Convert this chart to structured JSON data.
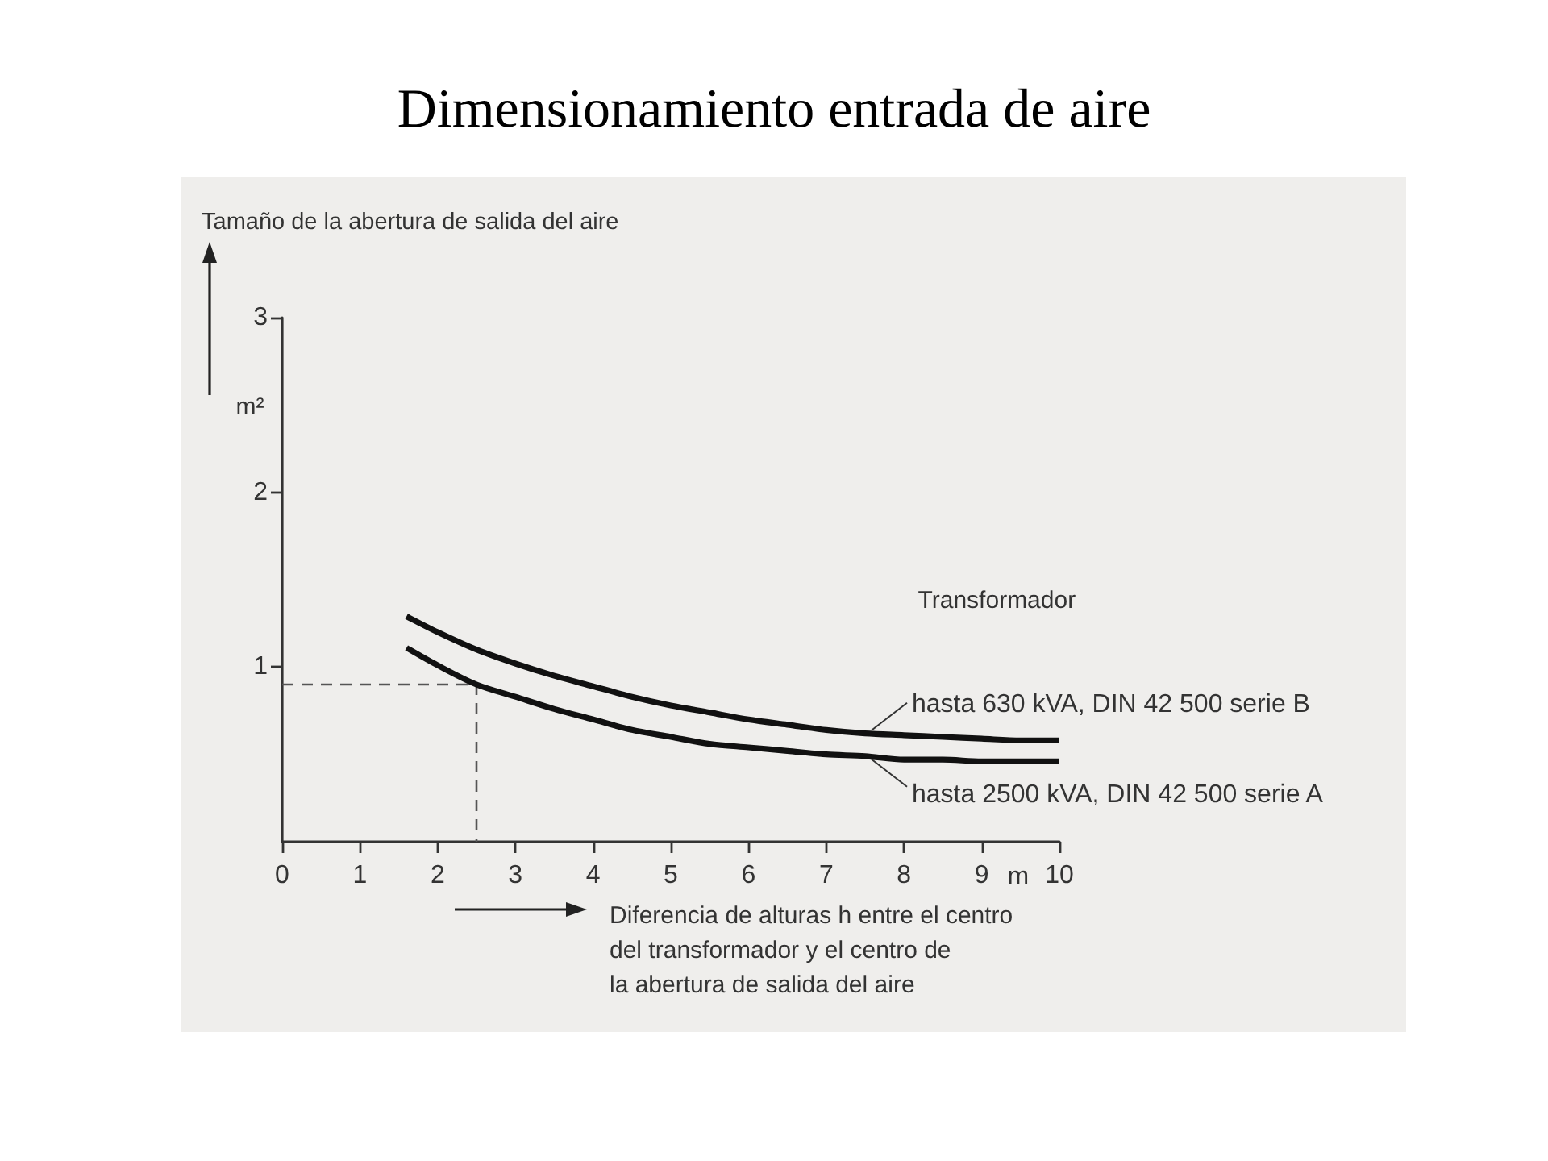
{
  "chart_data": {
    "type": "line",
    "title": "Dimensionamiento entrada de aire",
    "xlabel": "Diferencia de alturas h entre el centro\ndel transformador y el centro de\nla abertura de salida del aire",
    "ylabel": "Tamaño de la abertura de salida del aire",
    "annotations": [
      "m²",
      "Transformador",
      "m"
    ],
    "xlim": [
      0,
      10
    ],
    "ylim": [
      0,
      3
    ],
    "xticks": [
      0,
      1,
      2,
      3,
      4,
      5,
      6,
      7,
      8,
      9,
      10
    ],
    "yticks": [
      1,
      2,
      3
    ],
    "marker": "none",
    "line_style": "solid",
    "series": [
      {
        "name": "hasta 630 kVA, DIN 42 500 serie B",
        "color": "#111111",
        "x": [
          1.6,
          2.0,
          2.5,
          3.0,
          3.5,
          4.0,
          4.5,
          5.0,
          5.5,
          6.0,
          6.5,
          7.0,
          7.5,
          8.0,
          8.5,
          9.0,
          9.5,
          10
        ],
        "values": [
          1.29,
          1.2,
          1.1,
          1.02,
          0.95,
          0.89,
          0.83,
          0.78,
          0.74,
          0.7,
          0.67,
          0.64,
          0.62,
          0.61,
          0.6,
          0.59,
          0.58,
          0.58
        ]
      },
      {
        "name": "hasta 2500 kVA, DIN 42 500 serie A",
        "color": "#111111",
        "x": [
          1.6,
          2.0,
          2.5,
          3.0,
          3.5,
          4.0,
          4.5,
          5.0,
          5.5,
          6.0,
          6.5,
          7.0,
          7.5,
          8.0,
          8.5,
          9.0,
          9.5,
          10
        ],
        "values": [
          1.11,
          1.01,
          0.9,
          0.83,
          0.76,
          0.7,
          0.64,
          0.6,
          0.56,
          0.54,
          0.52,
          0.5,
          0.49,
          0.47,
          0.47,
          0.46,
          0.46,
          0.46
        ]
      },
      {
        "color": "#555555",
        "line_style": "dashed",
        "x": [
          0,
          2.5,
          2.5
        ],
        "values": [
          0.9,
          0.9,
          0
        ]
      }
    ]
  }
}
